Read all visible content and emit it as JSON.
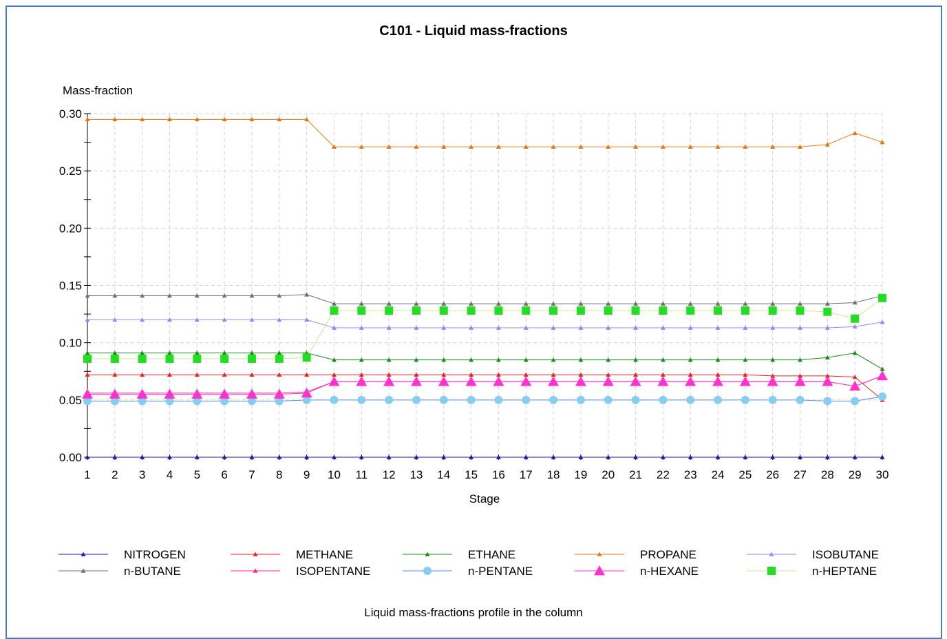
{
  "title": "C101 - Liquid mass-fractions",
  "caption": "Liquid mass-fractions profile in the column",
  "chart_data": {
    "type": "line",
    "title": "C101 - Liquid mass-fractions",
    "xlabel": "Stage",
    "ylabel": "Mass-fraction",
    "xlim": [
      1,
      30
    ],
    "ylim": [
      0,
      0.3
    ],
    "yticks": [
      "0.00",
      "0.05",
      "0.10",
      "0.15",
      "0.20",
      "0.25",
      "0.30"
    ],
    "grid": true,
    "legend_position": "bottom",
    "x": [
      1,
      2,
      3,
      4,
      5,
      6,
      7,
      8,
      9,
      10,
      11,
      12,
      13,
      14,
      15,
      16,
      17,
      18,
      19,
      20,
      21,
      22,
      23,
      24,
      25,
      26,
      27,
      28,
      29,
      30
    ],
    "series": [
      {
        "name": "NITROGEN",
        "color": "#1a1aa8",
        "marker": "triangle-small",
        "values": [
          0,
          0,
          0,
          0,
          0,
          0,
          0,
          0,
          0,
          0,
          0,
          0,
          0,
          0,
          0,
          0,
          0,
          0,
          0,
          0,
          0,
          0,
          0,
          0,
          0,
          0,
          0,
          0,
          0,
          0
        ]
      },
      {
        "name": "METHANE",
        "color": "#ee2222",
        "marker": "triangle-small",
        "values": [
          0.072,
          0.072,
          0.072,
          0.072,
          0.072,
          0.072,
          0.072,
          0.072,
          0.072,
          0.072,
          0.072,
          0.072,
          0.072,
          0.072,
          0.072,
          0.072,
          0.072,
          0.072,
          0.072,
          0.072,
          0.072,
          0.072,
          0.072,
          0.072,
          0.072,
          0.071,
          0.071,
          0.071,
          0.07,
          0.05
        ]
      },
      {
        "name": "ETHANE",
        "color": "#1a8a1a",
        "marker": "triangle-small",
        "values": [
          0.091,
          0.091,
          0.091,
          0.091,
          0.091,
          0.091,
          0.091,
          0.091,
          0.091,
          0.085,
          0.085,
          0.085,
          0.085,
          0.085,
          0.085,
          0.085,
          0.085,
          0.085,
          0.085,
          0.085,
          0.085,
          0.085,
          0.085,
          0.085,
          0.085,
          0.085,
          0.085,
          0.087,
          0.091,
          0.077
        ]
      },
      {
        "name": "PROPANE",
        "color": "#e07a10",
        "marker": "triangle-small",
        "values": [
          0.295,
          0.295,
          0.295,
          0.295,
          0.295,
          0.295,
          0.295,
          0.295,
          0.295,
          0.271,
          0.271,
          0.271,
          0.271,
          0.271,
          0.271,
          0.271,
          0.271,
          0.271,
          0.271,
          0.271,
          0.271,
          0.271,
          0.271,
          0.271,
          0.271,
          0.271,
          0.271,
          0.273,
          0.283,
          0.275
        ]
      },
      {
        "name": "ISOBUTANE",
        "color": "#8a8ef0",
        "marker": "triangle-small",
        "values": [
          0.12,
          0.12,
          0.12,
          0.12,
          0.12,
          0.12,
          0.12,
          0.12,
          0.12,
          0.113,
          0.113,
          0.113,
          0.113,
          0.113,
          0.113,
          0.113,
          0.113,
          0.113,
          0.113,
          0.113,
          0.113,
          0.113,
          0.113,
          0.113,
          0.113,
          0.113,
          0.113,
          0.113,
          0.114,
          0.118
        ]
      },
      {
        "name": "n-BUTANE",
        "color": "#707070",
        "marker": "triangle-small",
        "values": [
          0.141,
          0.141,
          0.141,
          0.141,
          0.141,
          0.141,
          0.141,
          0.141,
          0.142,
          0.134,
          0.134,
          0.134,
          0.134,
          0.134,
          0.134,
          0.134,
          0.134,
          0.134,
          0.134,
          0.134,
          0.134,
          0.134,
          0.134,
          0.134,
          0.134,
          0.134,
          0.134,
          0.134,
          0.135,
          0.141
        ]
      },
      {
        "name": "ISOPENTANE",
        "color": "#ff2a8a",
        "marker": "triangle-small",
        "values": [
          0.056,
          0.056,
          0.056,
          0.056,
          0.056,
          0.056,
          0.056,
          0.056,
          0.057,
          0.066,
          0.066,
          0.066,
          0.066,
          0.066,
          0.066,
          0.066,
          0.066,
          0.066,
          0.066,
          0.066,
          0.066,
          0.066,
          0.066,
          0.066,
          0.066,
          0.066,
          0.066,
          0.066,
          0.062,
          0.071
        ]
      },
      {
        "name": "n-PENTANE",
        "color": "#5a8ee8",
        "marker": "circle",
        "markerColor": "#88ccf0",
        "values": [
          0.049,
          0.049,
          0.049,
          0.049,
          0.049,
          0.049,
          0.049,
          0.049,
          0.05,
          0.05,
          0.05,
          0.05,
          0.05,
          0.05,
          0.05,
          0.05,
          0.05,
          0.05,
          0.05,
          0.05,
          0.05,
          0.05,
          0.05,
          0.05,
          0.05,
          0.05,
          0.05,
          0.049,
          0.049,
          0.053
        ]
      },
      {
        "name": "n-HEXANE",
        "color": "#ff33cc",
        "marker": "triangle-large",
        "values": [
          0.055,
          0.055,
          0.055,
          0.055,
          0.055,
          0.055,
          0.055,
          0.055,
          0.056,
          0.066,
          0.066,
          0.066,
          0.066,
          0.066,
          0.066,
          0.066,
          0.066,
          0.066,
          0.066,
          0.066,
          0.066,
          0.066,
          0.066,
          0.066,
          0.066,
          0.066,
          0.066,
          0.066,
          0.062,
          0.071
        ]
      },
      {
        "name": "n-HEPTANE",
        "color": "#c8e890",
        "marker": "square",
        "markerColor": "#22dd22",
        "values": [
          0.086,
          0.086,
          0.086,
          0.086,
          0.086,
          0.086,
          0.086,
          0.086,
          0.087,
          0.128,
          0.128,
          0.128,
          0.128,
          0.128,
          0.128,
          0.128,
          0.128,
          0.128,
          0.128,
          0.128,
          0.128,
          0.128,
          0.128,
          0.128,
          0.128,
          0.128,
          0.128,
          0.127,
          0.121,
          0.139
        ]
      }
    ]
  }
}
